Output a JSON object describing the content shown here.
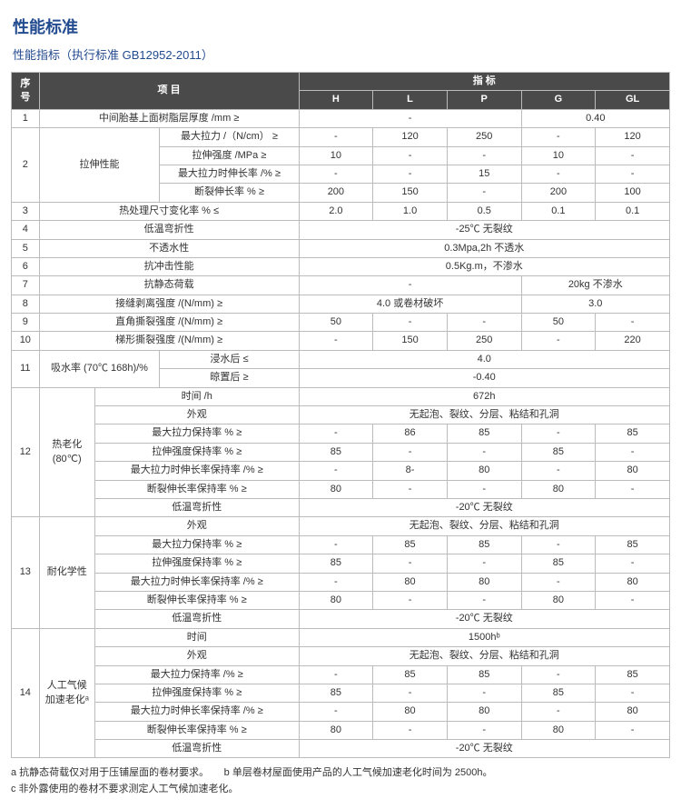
{
  "title": "性能标准",
  "subtitle": "性能指标（执行标准 GB12952-2011）",
  "header": {
    "seq": "序号",
    "item": "项 目",
    "indicator": "指 标",
    "cols": [
      "H",
      "L",
      "P",
      "G",
      "GL"
    ]
  },
  "col_widths": [
    "30px",
    "60px",
    "70px",
    "150px",
    "80px",
    "80px",
    "80px",
    "80px",
    "80px"
  ],
  "rows": [
    {
      "seq": "1",
      "item": "中间胎基上面树脂层厚度 /mm ≥",
      "merge": 3,
      "cells": [
        {
          "v": "-",
          "span": 3
        },
        {
          "v": "0.40",
          "span": 2
        }
      ]
    },
    {
      "seq": "2",
      "rowspan": 4,
      "g1": "拉伸性能",
      "g1rs": 4,
      "g1span": 2,
      "item": "最大拉力 /（N/cm） ≥",
      "cells": [
        {
          "v": "-"
        },
        {
          "v": "120"
        },
        {
          "v": "250"
        },
        {
          "v": "-"
        },
        {
          "v": "120"
        }
      ]
    },
    {
      "item": "拉伸强度 /MPa ≥",
      "cells": [
        {
          "v": "10"
        },
        {
          "v": "-"
        },
        {
          "v": "-"
        },
        {
          "v": "10"
        },
        {
          "v": "-"
        }
      ]
    },
    {
      "item": "最大拉力时伸长率 /% ≥",
      "cells": [
        {
          "v": "-"
        },
        {
          "v": "-"
        },
        {
          "v": "15"
        },
        {
          "v": "-"
        },
        {
          "v": "-"
        }
      ]
    },
    {
      "item": "断裂伸长率 % ≥",
      "cells": [
        {
          "v": "200"
        },
        {
          "v": "150"
        },
        {
          "v": "-"
        },
        {
          "v": "200"
        },
        {
          "v": "100"
        }
      ]
    },
    {
      "seq": "3",
      "item": "热处理尺寸变化率 % ≤",
      "merge": 3,
      "cells": [
        {
          "v": "2.0"
        },
        {
          "v": "1.0"
        },
        {
          "v": "0.5"
        },
        {
          "v": "0.1"
        },
        {
          "v": "0.1"
        }
      ]
    },
    {
      "seq": "4",
      "item": "低温弯折性",
      "merge": 3,
      "cells": [
        {
          "v": "-25℃ 无裂纹",
          "span": 5
        }
      ]
    },
    {
      "seq": "5",
      "item": "不透水性",
      "merge": 3,
      "cells": [
        {
          "v": "0.3Mpa,2h 不透水",
          "span": 5
        }
      ]
    },
    {
      "seq": "6",
      "item": "抗冲击性能",
      "merge": 3,
      "cells": [
        {
          "v": "0.5Kg.m，不渗水",
          "span": 5
        }
      ]
    },
    {
      "seq": "7",
      "item": "抗静态荷载",
      "merge": 3,
      "cells": [
        {
          "v": "-",
          "span": 3
        },
        {
          "v": "20kg 不渗水",
          "span": 2
        }
      ]
    },
    {
      "seq": "8",
      "item": "接缝剥离强度 /(N/mm) ≥",
      "merge": 3,
      "cells": [
        {
          "v": "4.0 或卷材破坏",
          "span": 3
        },
        {
          "v": "3.0",
          "span": 2
        }
      ]
    },
    {
      "seq": "9",
      "item": "直角撕裂强度 /(N/mm) ≥",
      "merge": 3,
      "cells": [
        {
          "v": "50"
        },
        {
          "v": "-"
        },
        {
          "v": "-"
        },
        {
          "v": "50"
        },
        {
          "v": "-"
        }
      ]
    },
    {
      "seq": "10",
      "item": "梯形撕裂强度 /(N/mm) ≥",
      "merge": 3,
      "cells": [
        {
          "v": "-"
        },
        {
          "v": "150"
        },
        {
          "v": "250"
        },
        {
          "v": "-"
        },
        {
          "v": "220"
        }
      ]
    },
    {
      "seq": "11",
      "rowspan": 2,
      "g1": "吸水率 (70℃ 168h)/%",
      "g1rs": 2,
      "g1span": 2,
      "item": "浸水后 ≤",
      "cells": [
        {
          "v": "4.0",
          "span": 5
        }
      ]
    },
    {
      "item": "晾置后 ≥",
      "cells": [
        {
          "v": "-0.40",
          "span": 5
        }
      ]
    },
    {
      "seq": "12",
      "rowspan": 7,
      "g1": "热老化",
      "g1rs": 7,
      "g1b": "(80℃)",
      "g1span": 1,
      "item": "时间 /h",
      "merge": 2,
      "cells": [
        {
          "v": "672h",
          "span": 5
        }
      ]
    },
    {
      "item": "外观",
      "merge": 2,
      "cells": [
        {
          "v": "无起泡、裂纹、分层、粘结和孔洞",
          "span": 5
        }
      ]
    },
    {
      "item": "最大拉力保持率 % ≥",
      "merge": 2,
      "cells": [
        {
          "v": "-"
        },
        {
          "v": "86"
        },
        {
          "v": "85"
        },
        {
          "v": "-"
        },
        {
          "v": "85"
        }
      ]
    },
    {
      "item": "拉伸强度保持率 % ≥",
      "merge": 2,
      "cells": [
        {
          "v": "85"
        },
        {
          "v": "-"
        },
        {
          "v": "-"
        },
        {
          "v": "85"
        },
        {
          "v": "-"
        }
      ]
    },
    {
      "item": "最大拉力时伸长率保持率 /% ≥",
      "merge": 2,
      "cells": [
        {
          "v": "-"
        },
        {
          "v": "8-"
        },
        {
          "v": "80"
        },
        {
          "v": "-"
        },
        {
          "v": "80"
        }
      ]
    },
    {
      "item": "断裂伸长率保持率 % ≥",
      "merge": 2,
      "cells": [
        {
          "v": "80"
        },
        {
          "v": "-"
        },
        {
          "v": "-"
        },
        {
          "v": "80"
        },
        {
          "v": "-"
        }
      ]
    },
    {
      "item": "低温弯折性",
      "merge": 2,
      "cells": [
        {
          "v": "-20℃ 无裂纹",
          "span": 5
        }
      ]
    },
    {
      "seq": "13",
      "rowspan": 6,
      "g1": "耐化学性",
      "g1rs": 6,
      "g1span": 1,
      "item": "外观",
      "merge": 2,
      "cells": [
        {
          "v": "无起泡、裂纹、分层、粘结和孔洞",
          "span": 5
        }
      ]
    },
    {
      "item": "最大拉力保持率 % ≥",
      "merge": 2,
      "cells": [
        {
          "v": "-"
        },
        {
          "v": "85"
        },
        {
          "v": "85"
        },
        {
          "v": "-"
        },
        {
          "v": "85"
        }
      ]
    },
    {
      "item": "拉伸强度保持率 % ≥",
      "merge": 2,
      "cells": [
        {
          "v": "85"
        },
        {
          "v": "-"
        },
        {
          "v": "-"
        },
        {
          "v": "85"
        },
        {
          "v": "-"
        }
      ]
    },
    {
      "item": "最大拉力时伸长率保持率 /% ≥",
      "merge": 2,
      "cells": [
        {
          "v": "-"
        },
        {
          "v": "80"
        },
        {
          "v": "80"
        },
        {
          "v": "-"
        },
        {
          "v": "80"
        }
      ]
    },
    {
      "item": "断裂伸长率保持率 % ≥",
      "merge": 2,
      "cells": [
        {
          "v": "80"
        },
        {
          "v": "-"
        },
        {
          "v": "-"
        },
        {
          "v": "80"
        },
        {
          "v": "-"
        }
      ]
    },
    {
      "item": "低温弯折性",
      "merge": 2,
      "cells": [
        {
          "v": "-20℃ 无裂纹",
          "span": 5
        }
      ]
    },
    {
      "seq": "14",
      "rowspan": 7,
      "g1": "人工气候",
      "g1rs": 7,
      "g1b": "加速老化ᵃ",
      "g1span": 1,
      "item": "时间",
      "merge": 2,
      "cells": [
        {
          "v": "1500hᵇ",
          "span": 5
        }
      ]
    },
    {
      "item": "外观",
      "merge": 2,
      "cells": [
        {
          "v": "无起泡、裂纹、分层、粘结和孔洞",
          "span": 5
        }
      ]
    },
    {
      "item": "最大拉力保持率 /% ≥",
      "merge": 2,
      "cells": [
        {
          "v": "-"
        },
        {
          "v": "85"
        },
        {
          "v": "85"
        },
        {
          "v": "-"
        },
        {
          "v": "85"
        }
      ]
    },
    {
      "item": "拉伸强度保持率 % ≥",
      "merge": 2,
      "cells": [
        {
          "v": "85"
        },
        {
          "v": "-"
        },
        {
          "v": "-"
        },
        {
          "v": "85"
        },
        {
          "v": "-"
        }
      ]
    },
    {
      "item": "最大拉力时伸长率保持率 /% ≥",
      "merge": 2,
      "cells": [
        {
          "v": "-"
        },
        {
          "v": "80"
        },
        {
          "v": "80"
        },
        {
          "v": "-"
        },
        {
          "v": "80"
        }
      ]
    },
    {
      "item": "断裂伸长率保持率 % ≥",
      "merge": 2,
      "cells": [
        {
          "v": "80"
        },
        {
          "v": "-"
        },
        {
          "v": "-"
        },
        {
          "v": "80"
        },
        {
          "v": "-"
        }
      ]
    },
    {
      "item": "低温弯折性",
      "merge": 2,
      "cells": [
        {
          "v": "-20℃ 无裂纹",
          "span": 5
        }
      ]
    }
  ],
  "notes": [
    "a 抗静态荷载仅对用于压铺屋面的卷材要求。　　b 单层卷材屋面使用产品的人工气候加速老化时间为 2500h。",
    "c 非外露使用的卷材不要求测定人工气候加速老化。"
  ]
}
